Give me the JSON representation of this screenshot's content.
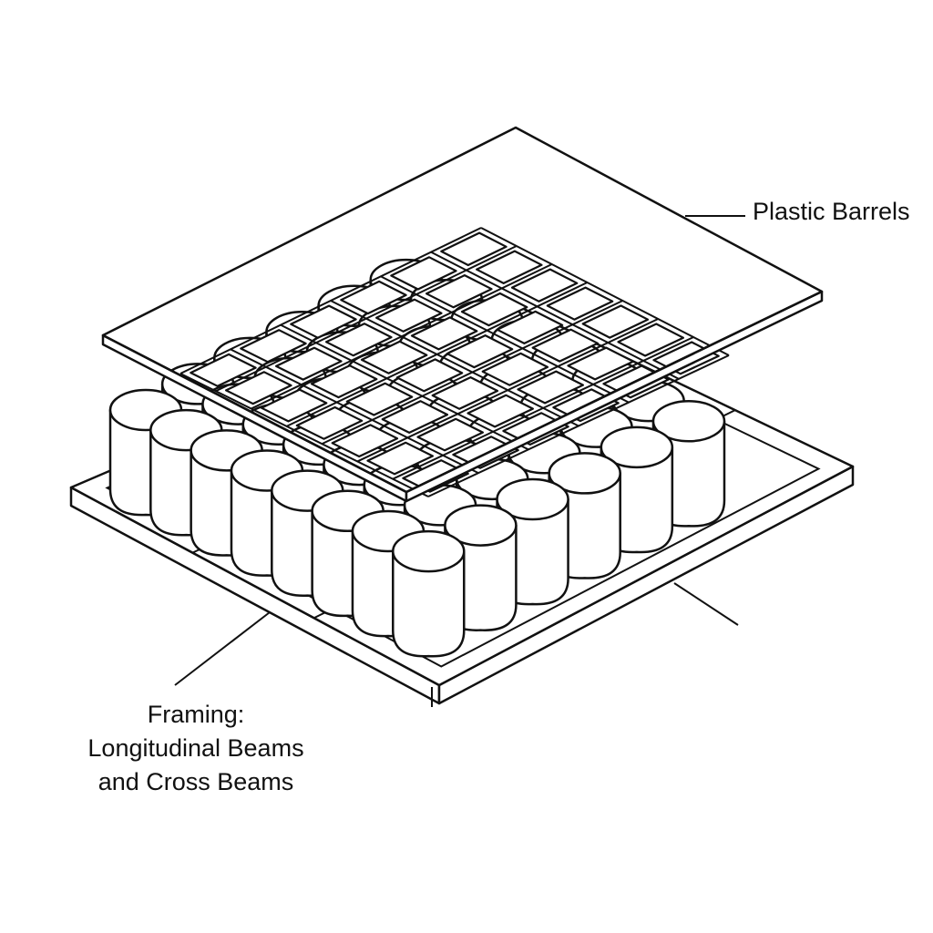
{
  "labels": {
    "plastic_barrels": "Plastic Barrels",
    "framing_line1": "Framing:",
    "framing_line2": "Longitudinal Beams",
    "framing_line3": "and Cross Beams"
  },
  "colors": {
    "stroke": "#111111",
    "fill": "#ffffff"
  },
  "barrel_grid": {
    "rows": 6,
    "cols": 8
  },
  "deck_grid": {
    "rows": 6,
    "cols": 7
  }
}
